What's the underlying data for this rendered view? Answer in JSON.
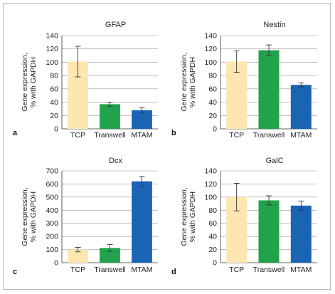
{
  "figure": {
    "colors": {
      "TCP": "#fde6b0",
      "Transwell": "#21a24b",
      "MTAM": "#1a64b4",
      "axis": "#333333",
      "grid": "#9a9a9a"
    }
  },
  "chart_data": [
    {
      "type": "bar",
      "panel": "a",
      "title": "GFAP",
      "ylabel_lines": [
        "Gene expression,",
        "% with GAPDH"
      ],
      "categories": [
        "TCP",
        "Transwell",
        "MTAM"
      ],
      "values": [
        101,
        37,
        28
      ],
      "errors": [
        23,
        3,
        4
      ],
      "ylim": [
        0,
        140
      ],
      "yticks": [
        0,
        20,
        40,
        60,
        80,
        100,
        120,
        140
      ],
      "grid": true
    },
    {
      "type": "bar",
      "panel": "b",
      "title": "Nestin",
      "ylabel_lines": [
        "Gene expression,",
        "% with GAPDH"
      ],
      "categories": [
        "TCP",
        "Transwell",
        "MTAM"
      ],
      "values": [
        101,
        118,
        66
      ],
      "errors": [
        16,
        8,
        3
      ],
      "ylim": [
        0,
        140
      ],
      "yticks": [
        0,
        20,
        40,
        60,
        80,
        100,
        120,
        140
      ],
      "grid": true
    },
    {
      "type": "bar",
      "panel": "c",
      "title": "Dcx",
      "ylabel_lines": [
        "Gene expression,",
        "% with GAPDH"
      ],
      "categories": [
        "TCP",
        "Transwell",
        "MTAM"
      ],
      "values": [
        100,
        112,
        620
      ],
      "errors": [
        17,
        27,
        37
      ],
      "ylim": [
        0,
        700
      ],
      "yticks": [
        0,
        100,
        200,
        300,
        400,
        500,
        600,
        700
      ],
      "grid": true
    },
    {
      "type": "bar",
      "panel": "d",
      "title": "GalC",
      "ylabel_lines": [
        "Gene expression,",
        "% with GAPDH"
      ],
      "categories": [
        "TCP",
        "Transwell",
        "MTAM"
      ],
      "values": [
        100,
        95,
        87
      ],
      "errors": [
        21,
        7,
        7
      ],
      "ylim": [
        0,
        140
      ],
      "yticks": [
        0,
        20,
        40,
        60,
        80,
        100,
        120,
        140
      ],
      "grid": true
    }
  ]
}
